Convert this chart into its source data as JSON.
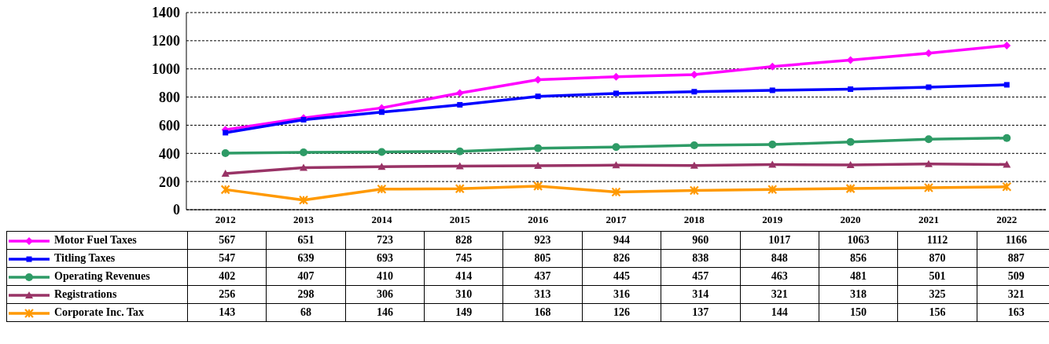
{
  "chart_data": {
    "type": "line",
    "categories": [
      "2012",
      "2013",
      "2014",
      "2015",
      "2016",
      "2017",
      "2018",
      "2019",
      "2020",
      "2021",
      "2022"
    ],
    "series": [
      {
        "name": "Motor Fuel Taxes",
        "color": "#ff00ff",
        "marker": "diamond",
        "values": [
          567,
          651,
          723,
          828,
          923,
          944,
          960,
          1017,
          1063,
          1112,
          1166
        ]
      },
      {
        "name": "Titling Taxes",
        "color": "#0000ff",
        "marker": "square",
        "values": [
          547,
          639,
          693,
          745,
          805,
          826,
          838,
          848,
          856,
          870,
          887
        ]
      },
      {
        "name": "Operating Revenues",
        "color": "#2e9b66",
        "marker": "circle",
        "values": [
          402,
          407,
          410,
          414,
          437,
          445,
          457,
          463,
          481,
          501,
          509
        ]
      },
      {
        "name": "Registrations",
        "color": "#993366",
        "marker": "triangle",
        "values": [
          256,
          298,
          306,
          310,
          313,
          316,
          314,
          321,
          318,
          325,
          321
        ]
      },
      {
        "name": "Corporate Inc. Tax",
        "color": "#ff9900",
        "marker": "cross",
        "values": [
          143,
          68,
          146,
          149,
          168,
          126,
          137,
          144,
          150,
          156,
          163
        ]
      }
    ],
    "ylim": [
      0,
      1400
    ],
    "yticks": [
      0,
      200,
      400,
      600,
      800,
      1000,
      1200,
      1400
    ],
    "grid": "y",
    "legend": "bottom",
    "data_labels": true,
    "line_style": "solid"
  }
}
